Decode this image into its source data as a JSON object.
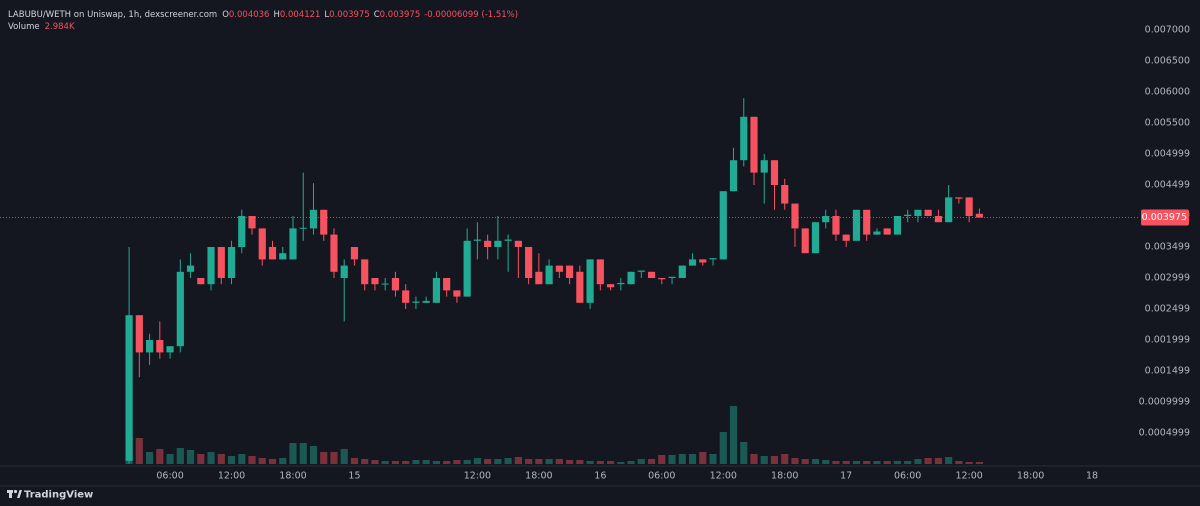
{
  "chart_data": {
    "type": "candlestick",
    "title": "LABUBU/WETH on Uniswap, 1h, dexscreener.com",
    "ohlc_letters": [
      "O",
      "H",
      "L",
      "C"
    ],
    "change": "-0.00006099 (-1.51%)",
    "volume_title": "Volume",
    "volume_label": "2.984K",
    "branding": "TradingView",
    "up_color": "#22ab94",
    "down_color": "#f7525f",
    "grid": false,
    "x": [
      2,
      3,
      4,
      5,
      6,
      7,
      8,
      9,
      10,
      11,
      12,
      13,
      14,
      15,
      16,
      17,
      18,
      19,
      20,
      21,
      22,
      23,
      24,
      25,
      26,
      27,
      28,
      29,
      30,
      31,
      32,
      33,
      34,
      35,
      36,
      37,
      38,
      39,
      40,
      41,
      42,
      43,
      44,
      45,
      46,
      47,
      48,
      49,
      50,
      51,
      52,
      53,
      54,
      55,
      56,
      57,
      58,
      59,
      60,
      61,
      62,
      63,
      64,
      65,
      66,
      67,
      68,
      69,
      70,
      71,
      72,
      73,
      74,
      75,
      76,
      77,
      78,
      79,
      80,
      81,
      82,
      83,
      84,
      85
    ],
    "open": [
      5e-05,
      0.0024,
      0.0018,
      0.002,
      0.0018,
      0.0019,
      0.0031,
      0.003,
      0.0029,
      0.0035,
      0.003,
      0.0035,
      0.004,
      0.0038,
      0.0035,
      0.0033,
      0.0033,
      0.0038,
      0.0038,
      0.0041,
      0.0037,
      0.003,
      0.0035,
      0.0033,
      0.003,
      0.0029,
      0.003,
      0.0028,
      0.0026,
      0.0026,
      0.0026,
      0.003,
      0.0028,
      0.0027,
      0.0036,
      0.0036,
      0.0035,
      0.0036,
      0.0036,
      0.0035,
      0.0031,
      0.0029,
      0.0032,
      0.0032,
      0.0031,
      0.0026,
      0.0033,
      0.0029,
      0.0029,
      0.0029,
      0.0031,
      0.0031,
      0.003,
      0.003,
      0.003,
      0.0032,
      0.0033,
      0.0033,
      0.0033,
      0.0044,
      0.0049,
      0.0056,
      0.0047,
      0.0049,
      0.0045,
      0.0042,
      0.0038,
      0.0034,
      0.0039,
      0.004,
      0.0037,
      0.0036,
      0.0041,
      0.0037,
      0.0038,
      0.0037,
      0.004,
      0.004,
      0.0041,
      0.004,
      0.0039,
      0.0043,
      0.0043,
      0.004036
    ],
    "high": [
      0.0035,
      0.0024,
      0.0021,
      0.0023,
      0.0019,
      0.0033,
      0.0034,
      0.003,
      0.0035,
      0.0035,
      0.0036,
      0.0041,
      0.004,
      0.0038,
      0.0036,
      0.0035,
      0.004,
      0.0047,
      0.00453,
      0.0041,
      0.0038,
      0.0033,
      0.0035,
      0.0033,
      0.003,
      0.003,
      0.0031,
      0.0029,
      0.0027,
      0.0027,
      0.0031,
      0.003,
      0.0028,
      0.0038,
      0.0039,
      0.0037,
      0.004,
      0.0037,
      0.0036,
      0.0035,
      0.0034,
      0.0033,
      0.0032,
      0.0032,
      0.0032,
      0.0033,
      0.0033,
      0.0029,
      0.003,
      0.0031,
      0.0031,
      0.0031,
      0.003,
      0.003,
      0.0032,
      0.0034,
      0.0033,
      0.0033,
      0.0044,
      0.0051,
      0.0059,
      0.0056,
      0.005,
      0.0049,
      0.0046,
      0.0042,
      0.0038,
      0.0039,
      0.0041,
      0.0041,
      0.0037,
      0.0041,
      0.0041,
      0.0038,
      0.0038,
      0.004,
      0.0041,
      0.0041,
      0.0041,
      0.0041,
      0.0045,
      0.0043,
      0.0043,
      0.004121
    ],
    "low": [
      1e-05,
      0.0014,
      0.0016,
      0.0017,
      0.0017,
      0.0018,
      0.003,
      0.0029,
      0.0028,
      0.0029,
      0.0029,
      0.0034,
      0.0037,
      0.0032,
      0.0033,
      0.0033,
      0.0033,
      0.0036,
      0.0037,
      0.0036,
      0.003,
      0.0023,
      0.0032,
      0.0028,
      0.0028,
      0.0028,
      0.0027,
      0.0025,
      0.0025,
      0.0026,
      0.0026,
      0.0027,
      0.0026,
      0.0027,
      0.0033,
      0.0033,
      0.0033,
      0.0031,
      0.003,
      0.0029,
      0.0029,
      0.0029,
      0.003,
      0.0029,
      0.0026,
      0.0025,
      0.0028,
      0.0028,
      0.0028,
      0.0029,
      0.003,
      0.003,
      0.0029,
      0.0029,
      0.003,
      0.0032,
      0.0032,
      0.0032,
      0.0033,
      0.0044,
      0.0048,
      0.0045,
      0.0042,
      0.0041,
      0.0041,
      0.0035,
      0.0034,
      0.0034,
      0.0038,
      0.0036,
      0.0035,
      0.0036,
      0.0036,
      0.0037,
      0.0037,
      0.0037,
      0.0039,
      0.0039,
      0.004,
      0.0039,
      0.0039,
      0.0042,
      0.0039,
      0.003975
    ],
    "close": [
      0.0024,
      0.0018,
      0.002,
      0.0018,
      0.0019,
      0.0031,
      0.0032,
      0.0029,
      0.0035,
      0.003,
      0.0035,
      0.004,
      0.0038,
      0.0033,
      0.0033,
      0.0034,
      0.0038,
      0.00381,
      0.0041,
      0.0037,
      0.0031,
      0.0032,
      0.0033,
      0.0029,
      0.0029,
      0.00291,
      0.0028,
      0.0026,
      0.00262,
      0.00263,
      0.003,
      0.0028,
      0.0027,
      0.0036,
      0.00362,
      0.0035,
      0.0036,
      0.00362,
      0.0035,
      0.003,
      0.0029,
      0.0032,
      0.0031,
      0.003,
      0.0026,
      0.0033,
      0.0029,
      0.00285,
      0.00292,
      0.0031,
      0.00312,
      0.003,
      0.00298,
      0.00302,
      0.0032,
      0.0033,
      0.00325,
      0.00332,
      0.0044,
      0.0049,
      0.0056,
      0.0047,
      0.0049,
      0.0045,
      0.0042,
      0.0038,
      0.0034,
      0.0039,
      0.004,
      0.0037,
      0.0036,
      0.0041,
      0.0037,
      0.00375,
      0.0037,
      0.004,
      0.00402,
      0.0041,
      0.004,
      0.0039,
      0.0043,
      0.00428,
      0.004,
      0.003975
    ],
    "volume": [
      40500,
      39000,
      18000,
      22500,
      15000,
      24000,
      21000,
      15000,
      18000,
      15000,
      12000,
      15000,
      12000,
      9000,
      7500,
      9000,
      31500,
      31500,
      27000,
      18000,
      18000,
      22500,
      9000,
      7500,
      6000,
      4500,
      4500,
      4500,
      6000,
      6000,
      4500,
      4500,
      6000,
      6000,
      9000,
      7500,
      7500,
      9000,
      10500,
      7500,
      7500,
      7500,
      7500,
      6000,
      6000,
      4500,
      4500,
      4500,
      3000,
      4500,
      7500,
      7500,
      13500,
      13500,
      15000,
      15000,
      18000,
      15000,
      48000,
      87000,
      33000,
      15000,
      12000,
      12000,
      15000,
      9000,
      7500,
      7500,
      6000,
      4500,
      4500,
      4500,
      4500,
      4500,
      4500,
      4500,
      4500,
      7500,
      9000,
      9000,
      10500,
      4500,
      3000,
      2984
    ],
    "xlim": [
      -10.6,
      97.75
    ],
    "xticks": [
      {
        "value": 6,
        "label": "06:00"
      },
      {
        "value": 12,
        "label": "12:00"
      },
      {
        "value": 18,
        "label": "18:00"
      },
      {
        "value": 24,
        "label": "15"
      },
      {
        "value": 36,
        "label": "12:00"
      },
      {
        "value": 42,
        "label": "18:00"
      },
      {
        "value": 48,
        "label": "16"
      },
      {
        "value": 54,
        "label": "06:00"
      },
      {
        "value": 60,
        "label": "12:00"
      },
      {
        "value": 66,
        "label": "18:00"
      },
      {
        "value": 72,
        "label": "17"
      },
      {
        "value": 78,
        "label": "06:00"
      },
      {
        "value": 84,
        "label": "12:00"
      },
      {
        "value": 90,
        "label": "18:00"
      },
      {
        "value": 96,
        "label": "18"
      }
    ],
    "ylim": [
      -3.23e-05,
      0.0074839
    ],
    "yticks": [
      {
        "value": 0.007,
        "label": "0.007000"
      },
      {
        "value": 0.0065,
        "label": "0.006500"
      },
      {
        "value": 0.006,
        "label": "0.006000"
      },
      {
        "value": 0.0055,
        "label": "0.005500"
      },
      {
        "value": 0.004999,
        "label": "0.004999"
      },
      {
        "value": 0.004499,
        "label": "0.004499"
      },
      {
        "value": 0.003999,
        "label": "0.003999"
      },
      {
        "value": 0.003499,
        "label": "0.003499"
      },
      {
        "value": 0.002999,
        "label": "0.002999"
      },
      {
        "value": 0.002499,
        "label": "0.002499"
      },
      {
        "value": 0.001999,
        "label": "0.001999"
      },
      {
        "value": 0.001499,
        "label": "0.001499"
      },
      {
        "value": 0.0009999,
        "label": "0.0009999"
      },
      {
        "value": 0.0004999,
        "label": "0.0004999"
      }
    ]
  }
}
